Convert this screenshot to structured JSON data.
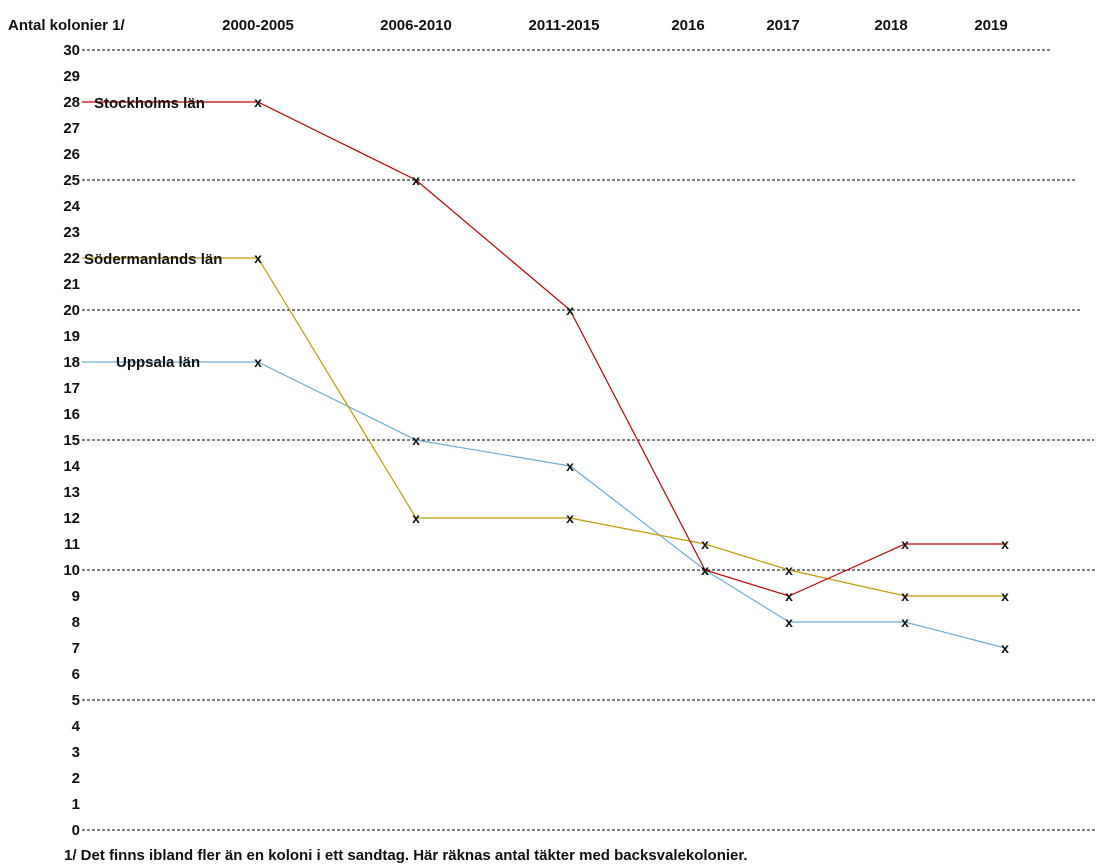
{
  "chart_data": {
    "type": "line",
    "title": "",
    "ylabel": "Antal kolonier 1/",
    "xlabel": "",
    "categories": [
      "2000-2005",
      "2006-2010",
      "2011-2015",
      "2016",
      "2017",
      "2018",
      "2019"
    ],
    "ylim": [
      0,
      30
    ],
    "yticks": [
      0,
      1,
      2,
      3,
      4,
      5,
      6,
      7,
      8,
      9,
      10,
      11,
      12,
      13,
      14,
      15,
      16,
      17,
      18,
      19,
      20,
      21,
      22,
      23,
      24,
      25,
      26,
      27,
      28,
      29,
      30
    ],
    "grid_lines_at": [
      0,
      5,
      10,
      15,
      20,
      25,
      30
    ],
    "series": [
      {
        "name": "Stockholms län",
        "color": "#c00000",
        "values": [
          28,
          25,
          20,
          10,
          9,
          11,
          11
        ]
      },
      {
        "name": "Södermanlands län",
        "color": "#c09a00",
        "values": [
          22,
          12,
          12,
          11,
          10,
          9,
          9
        ]
      },
      {
        "name": "Uppsala län",
        "color": "#6aaed6",
        "values": [
          18,
          15,
          14,
          10,
          8,
          8,
          7
        ]
      }
    ],
    "marker_symbol": "x",
    "footnote": "1/ Det finns ibland fler än en koloni i ett sandtag. Här räknas antal täkter med backsvalekolonier."
  }
}
